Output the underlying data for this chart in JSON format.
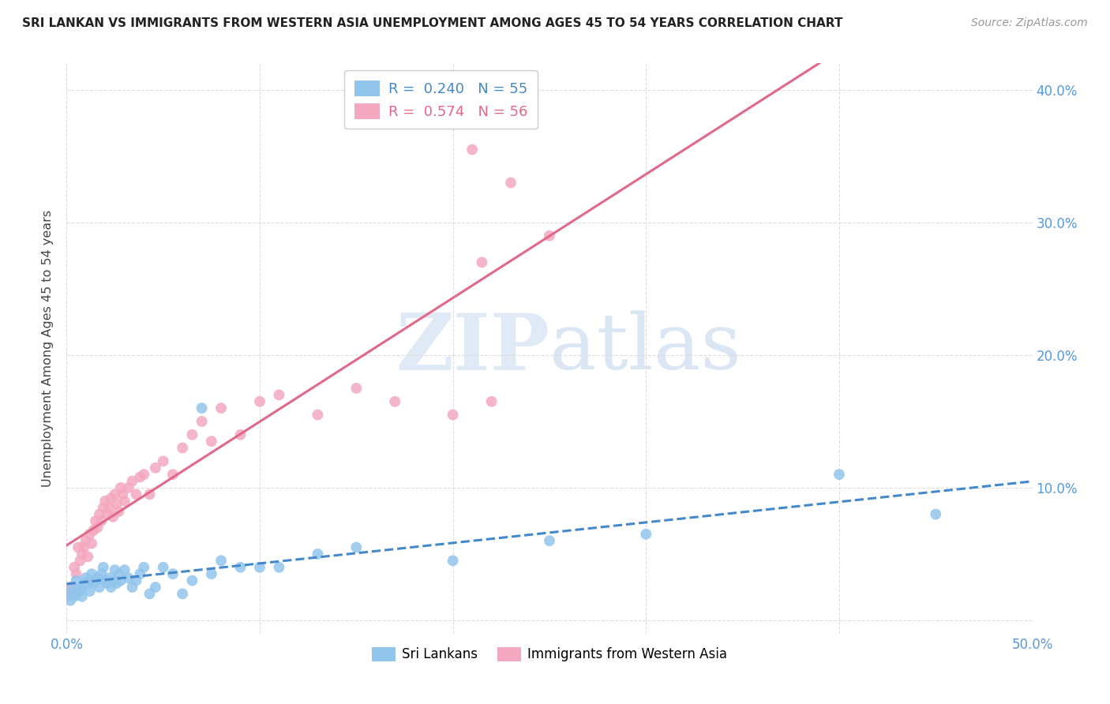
{
  "title": "SRI LANKAN VS IMMIGRANTS FROM WESTERN ASIA UNEMPLOYMENT AMONG AGES 45 TO 54 YEARS CORRELATION CHART",
  "source": "Source: ZipAtlas.com",
  "ylabel": "Unemployment Among Ages 45 to 54 years",
  "xlim": [
    0.0,
    0.5
  ],
  "ylim": [
    -0.01,
    0.42
  ],
  "xticks": [
    0.0,
    0.1,
    0.2,
    0.3,
    0.4,
    0.5
  ],
  "yticks": [
    0.0,
    0.1,
    0.2,
    0.3,
    0.4
  ],
  "xticklabels": [
    "0.0%",
    "",
    "",
    "",
    "",
    "50.0%"
  ],
  "yticklabels_right": [
    "",
    "10.0%",
    "20.0%",
    "30.0%",
    "40.0%"
  ],
  "legend_r_blue": "0.240",
  "legend_n_blue": "55",
  "legend_r_pink": "0.574",
  "legend_n_pink": "56",
  "blue_color": "#92C5EC",
  "pink_color": "#F4A8C0",
  "blue_line_color": "#4488CC",
  "pink_line_color": "#E06888",
  "blue_line_style": "--",
  "pink_line_style": "-",
  "watermark_zip": "ZIP",
  "watermark_atlas": "atlas",
  "background_color": "#FFFFFF",
  "grid_color": "#DDDDDD",
  "blue_scatter_x": [
    0.0,
    0.002,
    0.003,
    0.004,
    0.005,
    0.005,
    0.007,
    0.008,
    0.008,
    0.009,
    0.01,
    0.011,
    0.012,
    0.012,
    0.013,
    0.014,
    0.015,
    0.016,
    0.017,
    0.018,
    0.019,
    0.02,
    0.021,
    0.022,
    0.023,
    0.024,
    0.025,
    0.026,
    0.027,
    0.028,
    0.03,
    0.032,
    0.034,
    0.036,
    0.038,
    0.04,
    0.043,
    0.046,
    0.05,
    0.055,
    0.06,
    0.065,
    0.07,
    0.075,
    0.08,
    0.09,
    0.1,
    0.11,
    0.13,
    0.15,
    0.2,
    0.25,
    0.3,
    0.4,
    0.45
  ],
  "blue_scatter_y": [
    0.02,
    0.015,
    0.025,
    0.018,
    0.03,
    0.02,
    0.022,
    0.025,
    0.018,
    0.028,
    0.032,
    0.028,
    0.03,
    0.022,
    0.035,
    0.028,
    0.03,
    0.032,
    0.025,
    0.035,
    0.04,
    0.03,
    0.028,
    0.032,
    0.025,
    0.03,
    0.038,
    0.028,
    0.035,
    0.03,
    0.038,
    0.032,
    0.025,
    0.03,
    0.035,
    0.04,
    0.02,
    0.025,
    0.04,
    0.035,
    0.02,
    0.03,
    0.16,
    0.035,
    0.045,
    0.04,
    0.04,
    0.04,
    0.05,
    0.055,
    0.045,
    0.06,
    0.065,
    0.11,
    0.08
  ],
  "pink_scatter_x": [
    0.0,
    0.002,
    0.003,
    0.004,
    0.005,
    0.006,
    0.007,
    0.008,
    0.009,
    0.01,
    0.011,
    0.012,
    0.013,
    0.014,
    0.015,
    0.016,
    0.017,
    0.018,
    0.019,
    0.02,
    0.021,
    0.022,
    0.023,
    0.024,
    0.025,
    0.026,
    0.027,
    0.028,
    0.029,
    0.03,
    0.032,
    0.034,
    0.036,
    0.038,
    0.04,
    0.043,
    0.046,
    0.05,
    0.055,
    0.06,
    0.065,
    0.07,
    0.075,
    0.08,
    0.09,
    0.1,
    0.11,
    0.13,
    0.15,
    0.17,
    0.2,
    0.23,
    0.25,
    0.21,
    0.215,
    0.22
  ],
  "pink_scatter_y": [
    0.018,
    0.025,
    0.02,
    0.04,
    0.035,
    0.055,
    0.045,
    0.05,
    0.055,
    0.06,
    0.048,
    0.065,
    0.058,
    0.068,
    0.075,
    0.07,
    0.08,
    0.075,
    0.085,
    0.09,
    0.08,
    0.085,
    0.092,
    0.078,
    0.095,
    0.088,
    0.082,
    0.1,
    0.095,
    0.09,
    0.1,
    0.105,
    0.095,
    0.108,
    0.11,
    0.095,
    0.115,
    0.12,
    0.11,
    0.13,
    0.14,
    0.15,
    0.135,
    0.16,
    0.14,
    0.165,
    0.17,
    0.155,
    0.175,
    0.165,
    0.155,
    0.33,
    0.29,
    0.355,
    0.27,
    0.165
  ]
}
